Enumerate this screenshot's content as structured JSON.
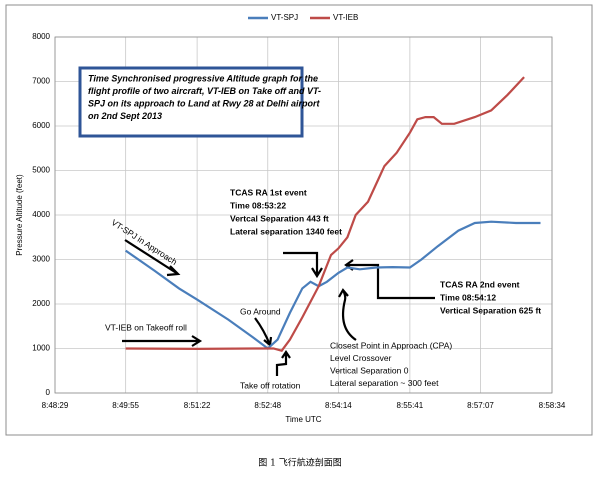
{
  "chart_data": {
    "type": "line",
    "title": [
      "Time Synchronised  progressive Altitude graph for the",
      "flight profile of two aircraft, VT-IEB on Take off and VT-",
      "SPJ on its approach to Land at Rwy 28 at Delhi airport",
      "on 2nd Sept 2013"
    ],
    "x_label": "Time UTC",
    "y_label": "Pressure Altitude (feet)",
    "caption": "图 1 飞行航迹剖面图",
    "xlim": [
      31709,
      32314
    ],
    "xticks": [
      {
        "value": 31709,
        "label": "8:48:29"
      },
      {
        "value": 31795,
        "label": "8:49:55"
      },
      {
        "value": 31882,
        "label": "8:51:22"
      },
      {
        "value": 31968,
        "label": "8:52:48"
      },
      {
        "value": 32054,
        "label": "8:54:14"
      },
      {
        "value": 32141,
        "label": "8:55:41"
      },
      {
        "value": 32227,
        "label": "8:57:07"
      },
      {
        "value": 32314,
        "label": "8:58:34"
      }
    ],
    "ylim": [
      0,
      8000
    ],
    "yticks": [
      0,
      1000,
      2000,
      3000,
      4000,
      5000,
      6000,
      7000,
      8000
    ],
    "grid": true,
    "legend": "top",
    "series": [
      {
        "name": "VT-SPJ",
        "color": "#4a7ebb",
        "x": [
          31795,
          31830,
          31860,
          31882,
          31920,
          31950,
          31968,
          31980,
          31995,
          32010,
          32020,
          32030,
          32040,
          32054,
          32065,
          32080,
          32100,
          32120,
          32141,
          32155,
          32175,
          32200,
          32220,
          32240,
          32270,
          32300
        ],
        "values": [
          3200,
          2750,
          2350,
          2100,
          1650,
          1250,
          1000,
          1200,
          1800,
          2350,
          2500,
          2400,
          2500,
          2700,
          2820,
          2780,
          2820,
          2830,
          2820,
          3000,
          3300,
          3650,
          3820,
          3850,
          3820,
          3820
        ]
      },
      {
        "name": "VT-IEB",
        "color": "#be4b48",
        "x": [
          31795,
          31882,
          31950,
          31975,
          31985,
          31995,
          32010,
          32030,
          32045,
          32054,
          32065,
          32075,
          32090,
          32110,
          32125,
          32141,
          32150,
          32160,
          32170,
          32180,
          32195,
          32220,
          32240,
          32260,
          32280
        ],
        "values": [
          1000,
          990,
          1000,
          1000,
          950,
          1200,
          1700,
          2400,
          3100,
          3250,
          3500,
          4000,
          4300,
          5100,
          5400,
          5850,
          6150,
          6200,
          6200,
          6050,
          6050,
          6200,
          6350,
          6700,
          7100
        ]
      }
    ],
    "annotations": [
      {
        "lines": [
          "VT-SPJ in Approach"
        ]
      },
      {
        "lines": [
          "VT-IEB on Takeoff roll"
        ]
      },
      {
        "lines": [
          "Go Around"
        ]
      },
      {
        "lines": [
          "Take off rotation"
        ]
      },
      {
        "lines": [
          "TCAS RA 1st event",
          "Time 08:53:22",
          "Vertcal Separation 443 ft",
          "Lateral separation 1340 feet"
        ]
      },
      {
        "lines": [
          "Closest Point in Approach (CPA)",
          " Level Crossover",
          " Vertical Separation 0",
          " Lateral separation ~ 300 feet"
        ]
      },
      {
        "lines": [
          "TCAS RA 2nd event",
          "Time 08:54:12",
          "Vertical Separation 625 ft"
        ]
      }
    ]
  }
}
